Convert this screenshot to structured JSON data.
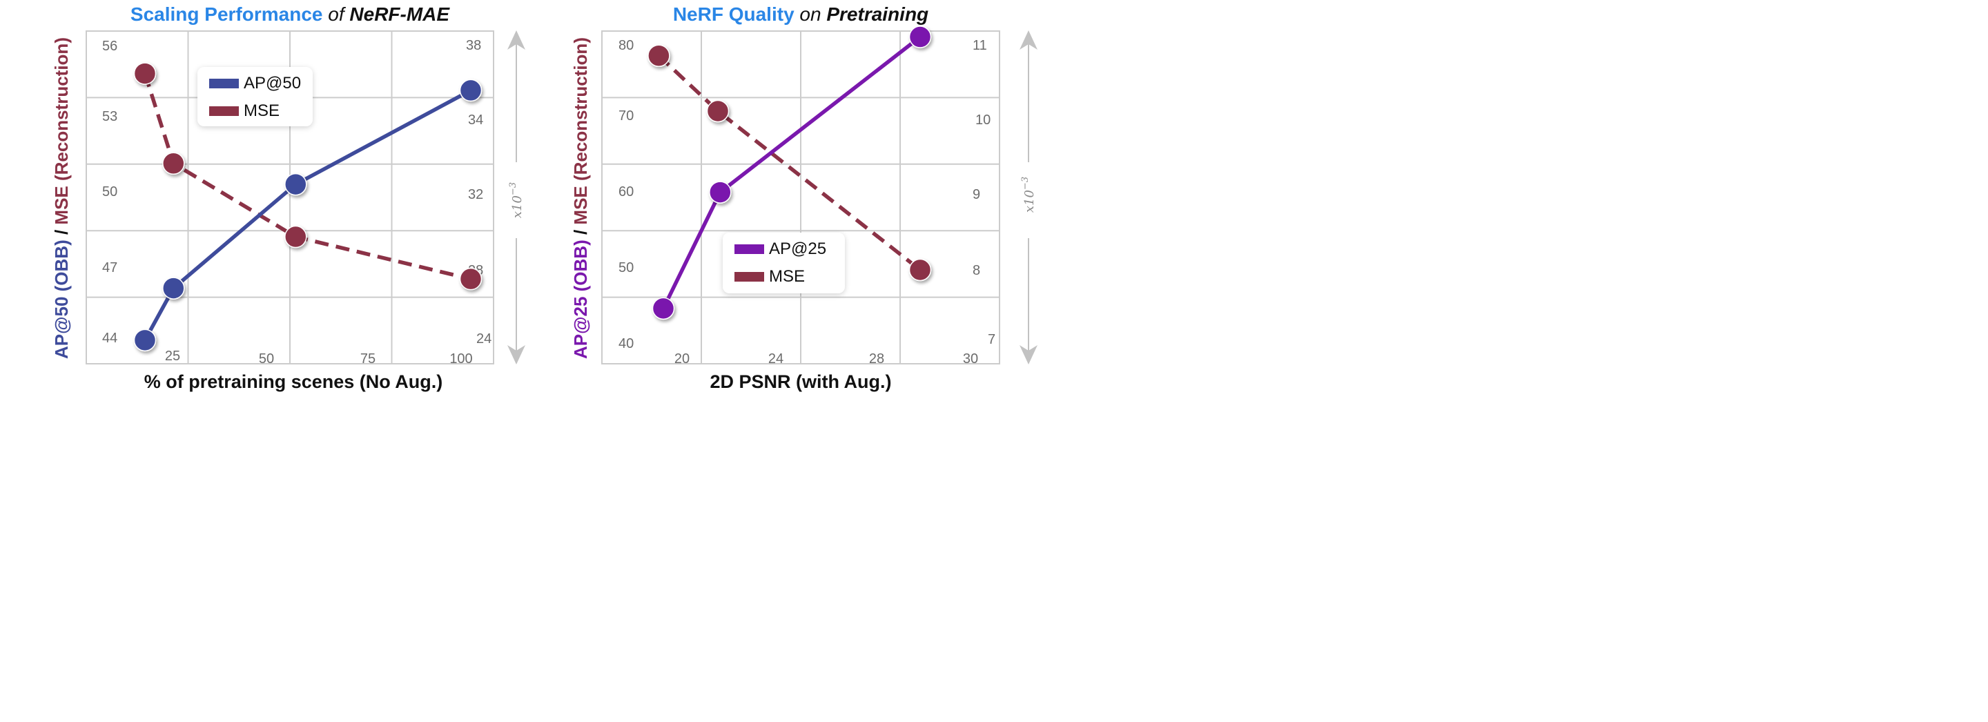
{
  "colors": {
    "blue": "#3e4b9b",
    "maroon": "#8b3246",
    "purple": "#7a18ad",
    "title_blue": "#2a86e6",
    "grid": "#cccccc",
    "arrow": "#c2c2c2"
  },
  "chart_data": [
    {
      "type": "line",
      "title_parts": [
        {
          "text": "Scaling Performance",
          "style": "blue"
        },
        {
          "text": " of ",
          "style": "italic-dark"
        },
        {
          "text": "NeRF-MAE",
          "style": "bold-italic-dark"
        }
      ],
      "xlabel": "% of pretraining scenes (No Aug.)",
      "ylabel_parts": [
        {
          "text": "AP@50 (OBB)",
          "color": "blue"
        },
        {
          "text": " / ",
          "color": "dark"
        },
        {
          "text": "MSE (Reconstruction)",
          "color": "maroon"
        }
      ],
      "secondary_scale_label": "x10^-3",
      "x_ticks": [
        "25",
        "50",
        "75",
        "100"
      ],
      "y_left_ticks": [
        "44",
        "47",
        "50",
        "53",
        "56"
      ],
      "y_right_ticks": [
        "24",
        "28",
        "32",
        "34",
        "38"
      ],
      "series": [
        {
          "name": "AP@50",
          "axis": "left",
          "color": "blue",
          "dashed": false,
          "x": [
            20,
            27,
            57,
            100
          ],
          "values": [
            44.2,
            46.3,
            50.5,
            54.3
          ]
        },
        {
          "name": "MSE",
          "axis": "right",
          "color": "maroon",
          "dashed": true,
          "x": [
            20,
            27,
            57,
            100
          ],
          "values": [
            37.0,
            32.1,
            28.1,
            25.8
          ]
        }
      ],
      "legend": {
        "position": "top-center",
        "entries": [
          "AP@50",
          "MSE"
        ]
      }
    },
    {
      "type": "line",
      "title_parts": [
        {
          "text": "NeRF Quality",
          "style": "blue"
        },
        {
          "text": " on ",
          "style": "italic-dark"
        },
        {
          "text": "Pretraining",
          "style": "bold-italic-dark"
        }
      ],
      "xlabel": "2D PSNR (with Aug.)",
      "ylabel_parts": [
        {
          "text": "AP@25 (OBB)",
          "color": "purple"
        },
        {
          "text": " / ",
          "color": "dark"
        },
        {
          "text": "MSE (Reconstruction)",
          "color": "maroon"
        }
      ],
      "secondary_scale_label": "x10^-3",
      "x_ticks": [
        "20",
        "24",
        "28",
        "30"
      ],
      "y_left_ticks": [
        "40",
        "50",
        "60",
        "70",
        "80"
      ],
      "y_right_ticks": [
        "7",
        "8",
        "9",
        "10",
        "11"
      ],
      "series": [
        {
          "name": "AP@25",
          "axis": "left",
          "color": "purple",
          "dashed": false,
          "x": [
            19.5,
            22.0,
            30.8
          ],
          "values": [
            44.5,
            59.9,
            80.5
          ]
        },
        {
          "name": "MSE",
          "axis": "right",
          "color": "maroon",
          "dashed": true,
          "x": [
            19.3,
            21.9,
            30.8
          ],
          "values": [
            10.9,
            10.15,
            8.0
          ]
        }
      ],
      "legend": {
        "position": "bottom-center",
        "entries": [
          "AP@25",
          "MSE"
        ]
      }
    }
  ]
}
